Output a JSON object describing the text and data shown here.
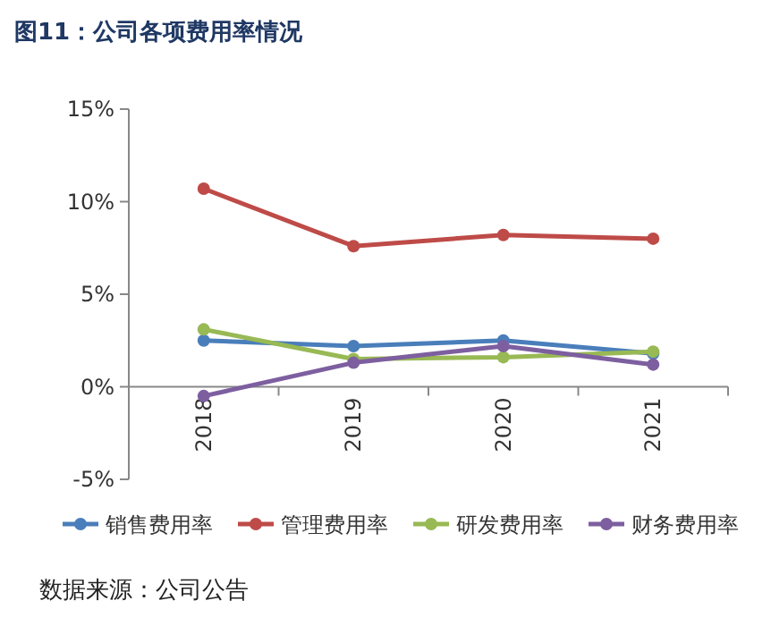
{
  "chart_data": {
    "type": "line",
    "title": "图11：公司各项费用率情况",
    "categories": [
      "2018",
      "2019",
      "2020",
      "2021"
    ],
    "series": [
      {
        "name": "销售费用率",
        "color": "#4a7ebb",
        "values": [
          2.5,
          2.2,
          2.5,
          1.8
        ]
      },
      {
        "name": "管理费用率",
        "color": "#be4b48",
        "values": [
          10.7,
          7.6,
          8.2,
          8.0
        ]
      },
      {
        "name": "研发费用率",
        "color": "#98b954",
        "values": [
          3.1,
          1.5,
          1.6,
          1.9
        ]
      },
      {
        "name": "财务费用率",
        "color": "#7d5fa0",
        "values": [
          -0.5,
          1.3,
          2.2,
          1.2
        ]
      }
    ],
    "ylim": [
      -5,
      15
    ],
    "yticks": [
      {
        "value": -5,
        "label": "-5%"
      },
      {
        "value": 0,
        "label": "0%"
      },
      {
        "value": 5,
        "label": "5%"
      },
      {
        "value": 10,
        "label": "10%"
      },
      {
        "value": 15,
        "label": "15%"
      }
    ],
    "marker": "circle",
    "legend": "bottom",
    "annotations": [
      "数据来源：公司公告"
    ]
  }
}
